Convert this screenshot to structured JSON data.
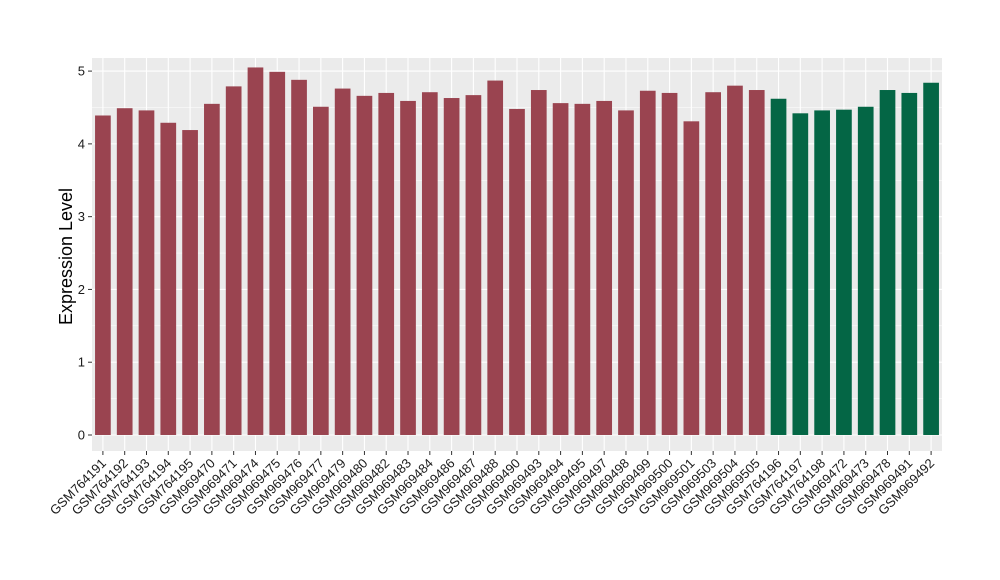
{
  "chart_data": {
    "type": "bar",
    "title": "",
    "xlabel": "",
    "ylabel": "Expression Level",
    "ylim": [
      -0.22,
      5.18
    ],
    "yticks": [
      0,
      1,
      2,
      3,
      4,
      5
    ],
    "grid": true,
    "legend": "none",
    "categories": [
      "GSM764191",
      "GSM764192",
      "GSM764193",
      "GSM764194",
      "GSM764195",
      "GSM969470",
      "GSM969471",
      "GSM969474",
      "GSM969475",
      "GSM969476",
      "GSM969477",
      "GSM969479",
      "GSM969480",
      "GSM969482",
      "GSM969483",
      "GSM969484",
      "GSM969486",
      "GSM969487",
      "GSM969488",
      "GSM969490",
      "GSM969493",
      "GSM969494",
      "GSM969495",
      "GSM969497",
      "GSM969498",
      "GSM969499",
      "GSM969500",
      "GSM969501",
      "GSM969503",
      "GSM969504",
      "GSM969505",
      "GSM764196",
      "GSM764197",
      "GSM764198",
      "GSM969472",
      "GSM969473",
      "GSM969478",
      "GSM969491",
      "GSM969492"
    ],
    "values": [
      4.39,
      4.49,
      4.46,
      4.29,
      4.19,
      4.55,
      4.79,
      5.05,
      4.99,
      4.88,
      4.51,
      4.76,
      4.66,
      4.7,
      4.59,
      4.71,
      4.63,
      4.67,
      4.87,
      4.48,
      4.74,
      4.56,
      4.55,
      4.59,
      4.46,
      4.73,
      4.7,
      4.31,
      4.71,
      4.8,
      4.74,
      4.62,
      4.42,
      4.46,
      4.47,
      4.51,
      4.74,
      4.7,
      4.84
    ],
    "groups": [
      0,
      0,
      0,
      0,
      0,
      0,
      0,
      0,
      0,
      0,
      0,
      0,
      0,
      0,
      0,
      0,
      0,
      0,
      0,
      0,
      0,
      0,
      0,
      0,
      0,
      0,
      0,
      0,
      0,
      0,
      0,
      1,
      1,
      1,
      1,
      1,
      1,
      1,
      1
    ],
    "group_colors": [
      "#9a4450",
      "#046645"
    ]
  },
  "style": {
    "panel_background": "#ebebeb",
    "grid_color": "#ffffff",
    "axis_text_color": "#1a1a1a"
  }
}
